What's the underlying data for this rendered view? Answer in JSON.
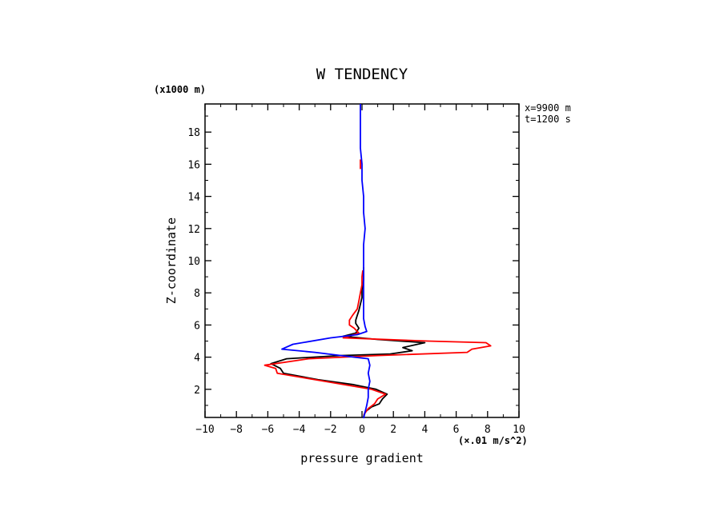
{
  "chart_data": {
    "type": "line",
    "title": "W TENDENCY",
    "xlabel": "pressure gradient",
    "x_unit": "(×.01 m/s^2)",
    "ylabel": "Z-coordinate",
    "y_unit": "(x1000 m)",
    "annotations": [
      "x=9900 m",
      "t=1200 s"
    ],
    "xlim": [
      -10,
      10
    ],
    "ylim": [
      0.25,
      19.75
    ],
    "x_ticks": [
      -10,
      -8,
      -6,
      -4,
      -2,
      0,
      2,
      4,
      6,
      8,
      10
    ],
    "y_ticks": [
      2,
      4,
      6,
      8,
      10,
      12,
      14,
      16,
      18
    ],
    "grid": false,
    "series": [
      {
        "color": "#000000",
        "points": [
          [
            0.1,
            0.3
          ],
          [
            0.2,
            0.6
          ],
          [
            0.6,
            0.9
          ],
          [
            1.1,
            1.1
          ],
          [
            1.3,
            1.4
          ],
          [
            1.6,
            1.7
          ],
          [
            0.9,
            2.0
          ],
          [
            -0.6,
            2.3
          ],
          [
            -2.8,
            2.6
          ],
          [
            -5.0,
            3.0
          ],
          [
            -5.2,
            3.3
          ],
          [
            -5.8,
            3.6
          ],
          [
            -4.8,
            3.9
          ],
          [
            -1.4,
            4.1
          ],
          [
            1.8,
            4.2
          ],
          [
            3.2,
            4.4
          ],
          [
            2.6,
            4.6
          ],
          [
            4.0,
            4.9
          ],
          [
            1.0,
            5.1
          ],
          [
            -1.2,
            5.3
          ],
          [
            -0.4,
            5.5
          ],
          [
            -0.2,
            5.8
          ],
          [
            -0.4,
            6.1
          ],
          [
            -0.4,
            6.3
          ],
          [
            -0.3,
            6.6
          ],
          [
            -0.2,
            6.9
          ],
          [
            -0.1,
            7.3
          ],
          [
            0.0,
            7.7
          ],
          [
            0.0,
            8.2
          ],
          [
            0.1,
            8.8
          ],
          [
            0.1,
            9.3
          ],
          [
            0.1,
            9.6
          ]
        ]
      },
      {
        "color": "#ff0000",
        "points": [
          [
            0.1,
            0.4
          ],
          [
            0.4,
            0.8
          ],
          [
            0.8,
            1.1
          ],
          [
            1.0,
            1.4
          ],
          [
            1.5,
            1.7
          ],
          [
            0.6,
            2.0
          ],
          [
            -1.2,
            2.3
          ],
          [
            -3.0,
            2.6
          ],
          [
            -5.4,
            3.0
          ],
          [
            -5.5,
            3.3
          ],
          [
            -6.2,
            3.5
          ],
          [
            -3.4,
            3.9
          ],
          [
            1.0,
            4.1
          ],
          [
            6.7,
            4.3
          ],
          [
            7.0,
            4.5
          ],
          [
            8.2,
            4.7
          ],
          [
            7.9,
            4.9
          ],
          [
            4.2,
            5.0
          ],
          [
            -1.2,
            5.2
          ],
          [
            -0.2,
            5.5
          ],
          [
            -0.5,
            5.8
          ],
          [
            -0.8,
            6.0
          ],
          [
            -0.8,
            6.3
          ],
          [
            -0.6,
            6.6
          ],
          [
            -0.3,
            7.0
          ],
          [
            -0.2,
            7.5
          ],
          [
            -0.1,
            8.0
          ],
          [
            0.0,
            8.5
          ],
          [
            0.0,
            9.0
          ],
          [
            0.05,
            9.4
          ]
        ]
      },
      {
        "color": "#ff0000",
        "points": [
          [
            -0.1,
            15.7
          ],
          [
            -0.1,
            16.3
          ]
        ]
      },
      {
        "color": "#0000ff",
        "points": [
          [
            0.1,
            0.2
          ],
          [
            0.2,
            0.6
          ],
          [
            0.3,
            1.0
          ],
          [
            0.4,
            1.5
          ],
          [
            0.4,
            2.0
          ],
          [
            0.5,
            2.5
          ],
          [
            0.4,
            3.0
          ],
          [
            0.5,
            3.5
          ],
          [
            0.4,
            3.9
          ],
          [
            -0.5,
            4.0
          ],
          [
            -3.0,
            4.3
          ],
          [
            -5.1,
            4.5
          ],
          [
            -4.4,
            4.8
          ],
          [
            -2.0,
            5.2
          ],
          [
            -0.3,
            5.4
          ],
          [
            0.3,
            5.6
          ],
          [
            0.2,
            5.9
          ],
          [
            0.1,
            6.4
          ],
          [
            0.1,
            7.2
          ],
          [
            0.1,
            8.0
          ],
          [
            0.1,
            9.0
          ],
          [
            0.1,
            10.0
          ],
          [
            0.1,
            11.0
          ],
          [
            0.2,
            12.0
          ],
          [
            0.1,
            13.0
          ],
          [
            0.1,
            14.0
          ],
          [
            0.0,
            15.0
          ],
          [
            0.0,
            16.0
          ],
          [
            -0.1,
            17.0
          ],
          [
            -0.1,
            18.0
          ],
          [
            -0.1,
            19.0
          ],
          [
            -0.1,
            19.75
          ]
        ]
      }
    ]
  }
}
